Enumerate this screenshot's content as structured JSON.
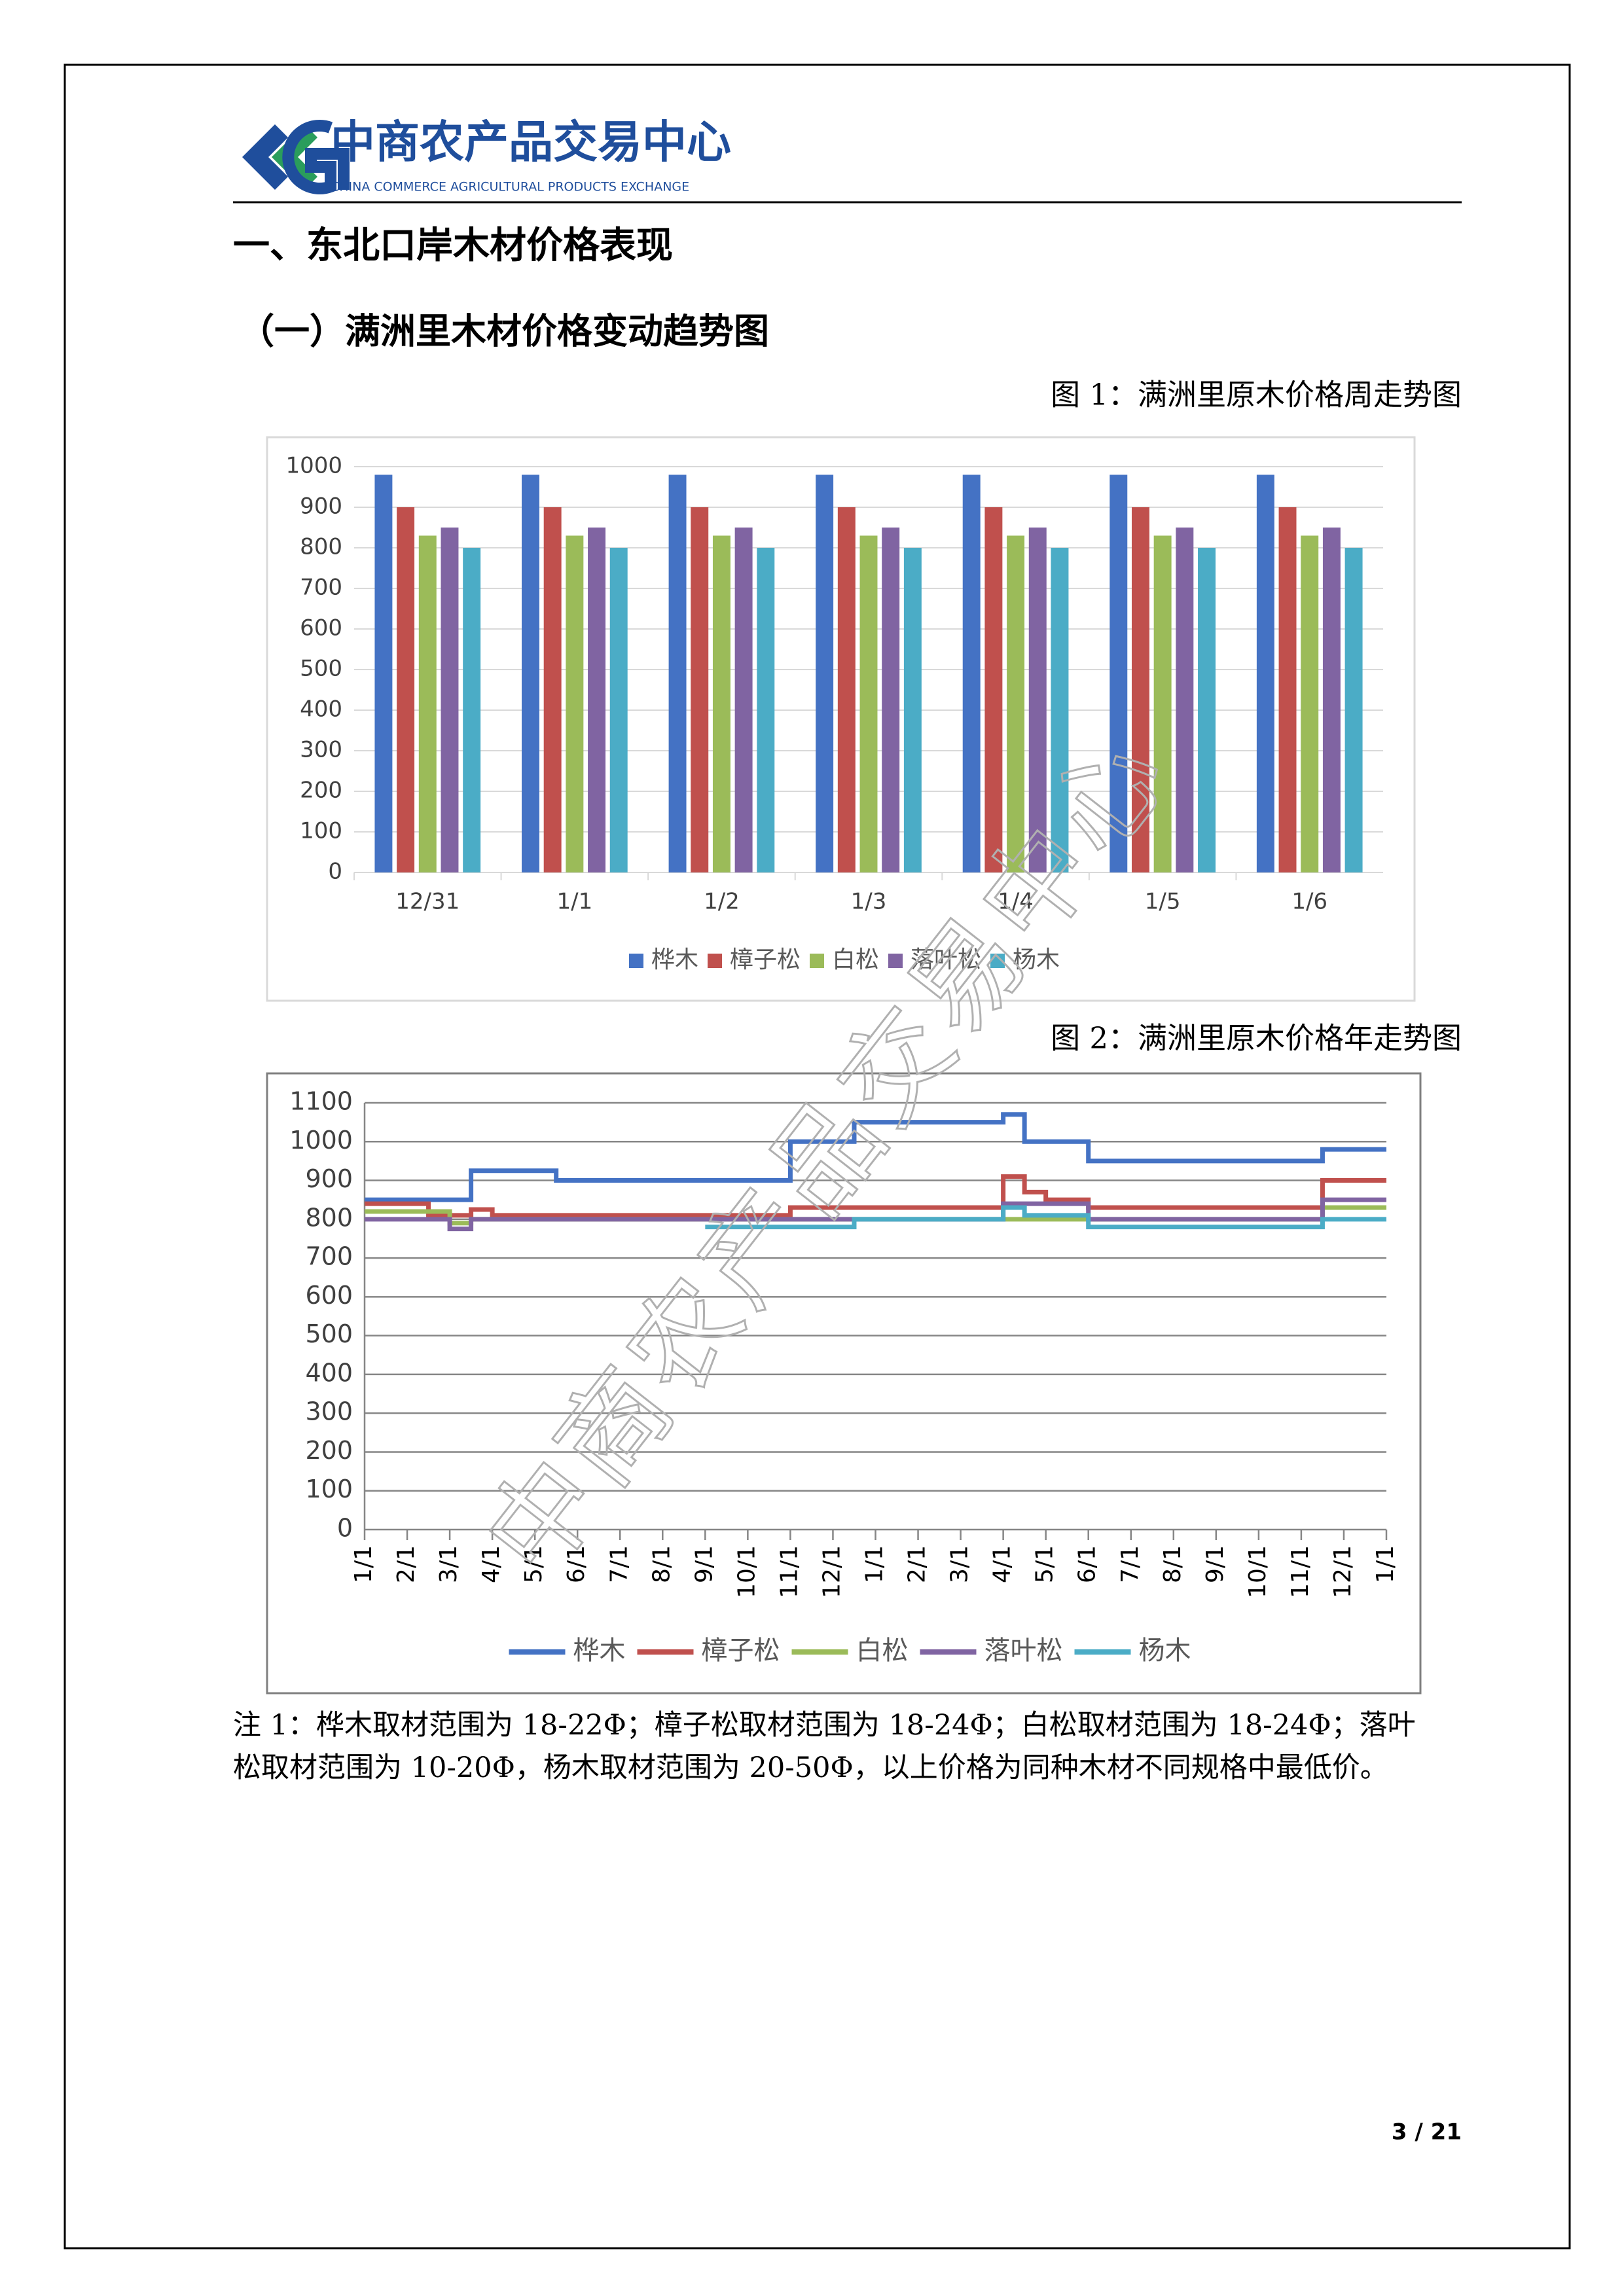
{
  "header": {
    "logo_text": "中商农产品交易中心",
    "logo_subtext": "CHINA COMMERCE AGRICULTURAL PRODUCTS EXCHANGE"
  },
  "section_title": "一、东北口岸木材价格表现",
  "subsection_title": "（一）满洲里木材价格变动趋势图",
  "watermark": "中商农产品交易中心",
  "chart_data": [
    {
      "type": "bar",
      "title": "图 1：满洲里原木价格周走势图",
      "categories": [
        "12/31",
        "1/1",
        "1/2",
        "1/3",
        "1/4",
        "1/5",
        "1/6"
      ],
      "series": [
        {
          "name": "桦木",
          "color": "#4472c4",
          "values": [
            980,
            980,
            980,
            980,
            980,
            980,
            980
          ]
        },
        {
          "name": "樟子松",
          "color": "#c0504d",
          "values": [
            900,
            900,
            900,
            900,
            900,
            900,
            900
          ]
        },
        {
          "name": "白松",
          "color": "#9bbb59",
          "values": [
            830,
            830,
            830,
            830,
            830,
            830,
            830
          ]
        },
        {
          "name": "落叶松",
          "color": "#8064a2",
          "values": [
            850,
            850,
            850,
            850,
            850,
            850,
            850
          ]
        },
        {
          "name": "杨木",
          "color": "#4bacc6",
          "values": [
            800,
            800,
            800,
            800,
            800,
            800,
            800
          ]
        }
      ],
      "ylim": [
        0,
        1000
      ],
      "yticks": [
        0,
        100,
        200,
        300,
        400,
        500,
        600,
        700,
        800,
        900,
        1000
      ],
      "grid": true,
      "legend": "bottom"
    },
    {
      "type": "step-line",
      "title": "图 2：满洲里原木价格年走势图",
      "categories": [
        "1/1",
        null,
        "2/1",
        null,
        "3/1",
        null,
        "4/1",
        null,
        "5/1",
        null,
        "6/1",
        null,
        "7/1",
        null,
        "8/1",
        null,
        "9/1",
        null,
        "10/1",
        null,
        "11/1",
        null,
        "12/1",
        null,
        "1/1",
        null,
        "2/1",
        null,
        "3/1",
        null,
        "4/1",
        null,
        "5/1",
        null,
        "6/1",
        null,
        "7/1",
        null,
        "8/1",
        null,
        "9/1",
        null,
        "10/1",
        null,
        "11/1",
        null,
        "12/1",
        null,
        "1/1"
      ],
      "series": [
        {
          "name": "桦木",
          "color": "#4472c4",
          "values": [
            850,
            850,
            850,
            850,
            850,
            925,
            925,
            925,
            925,
            900,
            900,
            900,
            900,
            900,
            900,
            900,
            900,
            900,
            900,
            900,
            1000,
            1000,
            1000,
            1050,
            1050,
            1050,
            1050,
            1050,
            1050,
            1050,
            1070,
            1000,
            1000,
            1000,
            950,
            950,
            950,
            950,
            950,
            950,
            950,
            950,
            950,
            950,
            950,
            980,
            980,
            980,
            980
          ]
        },
        {
          "name": "樟子松",
          "color": "#c0504d",
          "values": [
            840,
            840,
            840,
            810,
            810,
            825,
            810,
            810,
            810,
            810,
            810,
            810,
            810,
            810,
            810,
            810,
            810,
            810,
            810,
            810,
            830,
            830,
            830,
            830,
            830,
            830,
            830,
            830,
            830,
            830,
            910,
            870,
            850,
            850,
            830,
            830,
            830,
            830,
            830,
            830,
            830,
            830,
            830,
            830,
            830,
            900,
            900,
            900,
            900
          ]
        },
        {
          "name": "白松",
          "color": "#9bbb59",
          "values": [
            820,
            820,
            820,
            820,
            790,
            800,
            800,
            800,
            800,
            800,
            800,
            800,
            800,
            800,
            800,
            800,
            800,
            800,
            800,
            800,
            800,
            800,
            800,
            800,
            800,
            800,
            800,
            800,
            800,
            800,
            800,
            800,
            800,
            800,
            800,
            800,
            800,
            800,
            800,
            800,
            800,
            800,
            800,
            800,
            800,
            830,
            830,
            830,
            830
          ]
        },
        {
          "name": "落叶松",
          "color": "#8064a2",
          "values": [
            800,
            800,
            800,
            800,
            775,
            800,
            800,
            800,
            800,
            800,
            800,
            800,
            800,
            800,
            800,
            800,
            800,
            800,
            800,
            800,
            800,
            800,
            800,
            800,
            800,
            800,
            800,
            800,
            800,
            800,
            840,
            840,
            840,
            840,
            800,
            800,
            800,
            800,
            800,
            800,
            800,
            800,
            800,
            800,
            800,
            850,
            850,
            850,
            850
          ]
        },
        {
          "name": "杨木",
          "color": "#4bacc6",
          "values": [
            null,
            null,
            null,
            null,
            null,
            null,
            null,
            null,
            null,
            null,
            null,
            null,
            null,
            null,
            null,
            null,
            780,
            780,
            780,
            780,
            780,
            780,
            780,
            800,
            800,
            800,
            800,
            800,
            800,
            800,
            830,
            810,
            810,
            810,
            780,
            780,
            780,
            780,
            780,
            780,
            780,
            780,
            780,
            780,
            780,
            800,
            800,
            800,
            800
          ]
        }
      ],
      "ylim": [
        0,
        1100
      ],
      "yticks": [
        0,
        100,
        200,
        300,
        400,
        500,
        600,
        700,
        800,
        900,
        1000,
        1100
      ],
      "grid": true,
      "legend": "bottom"
    }
  ],
  "note": [
    "注 1：桦木取材范围为 18-22Φ；樟子松取材范围为 18-24Φ；白松取材范围为 18-24Φ；落叶",
    "松取材范围为 10-20Φ，杨木取材范围为 20-50Φ，以上价格为同种木材不同规格中最低价。"
  ],
  "page_number": "3 / 21"
}
